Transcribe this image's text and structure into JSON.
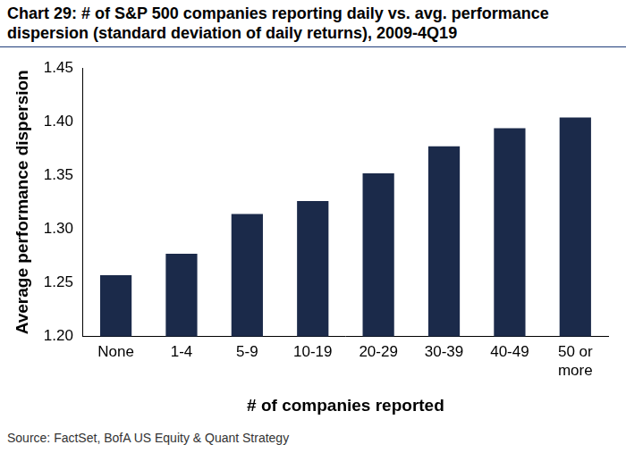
{
  "chart_data": {
    "type": "bar",
    "title": "Chart 29: # of S&P 500 companies reporting daily vs. avg. performance dispersion (standard deviation of daily returns), 2009-4Q19",
    "x_label": "# of companies reported",
    "y_label": "Average performance dispersion",
    "source": "Source: FactSet, BofA US Equity & Quant Strategy",
    "categories": [
      "None",
      "1-4",
      "5-9",
      "10-19",
      "20-29",
      "30-39",
      "40-49",
      "50 or more"
    ],
    "values": [
      1.257,
      1.277,
      1.314,
      1.326,
      1.352,
      1.377,
      1.394,
      1.404
    ],
    "color": "#1b2a4a",
    "ylim": [
      1.2,
      1.45
    ],
    "yticks": [
      {
        "value": 1.2,
        "label": "1.20"
      },
      1.25,
      {
        "value": 1.3,
        "label": "1.30"
      },
      1.35,
      {
        "value": 1.4,
        "label": "1.40"
      },
      1.45
    ],
    "grid": false
  }
}
